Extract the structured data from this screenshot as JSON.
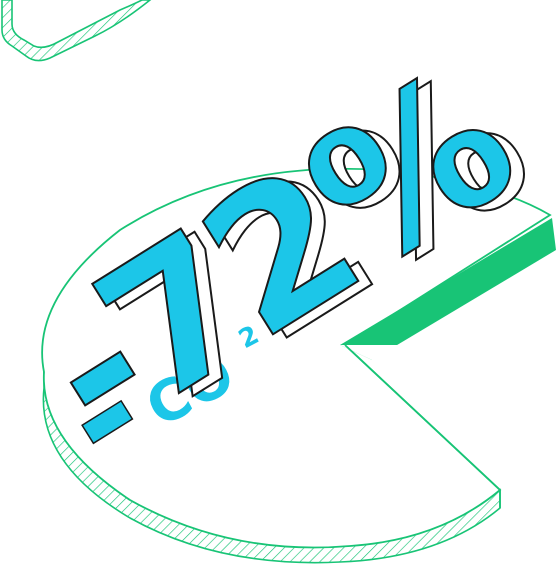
{
  "headline": {
    "minus": "-",
    "digit_7": "7",
    "digit_2": "2",
    "percent": "%",
    "value": -72,
    "unit": "%"
  },
  "pollutant": {
    "base": "CO",
    "subscript": "2"
  },
  "chart_data": {
    "type": "pie",
    "slices": [
      {
        "label": "",
        "value": 72
      },
      {
        "label": "",
        "value": 28
      }
    ]
  },
  "colors": {
    "accent_blue": "#1cc6e8",
    "accent_green": "#18c476",
    "outline_green": "#18c476",
    "number_outline": "#1a1a1a",
    "background": "#ffffff"
  }
}
